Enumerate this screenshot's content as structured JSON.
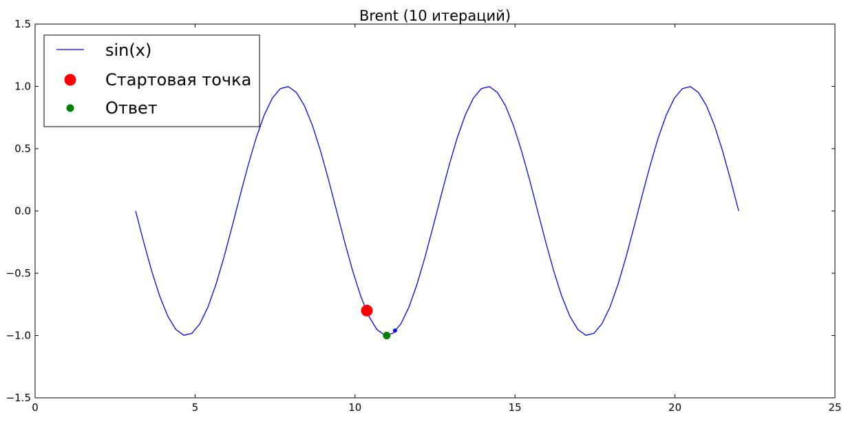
{
  "chart_data": {
    "type": "line",
    "title": "Brent (10 итераций)",
    "xlabel": "",
    "ylabel": "",
    "xlim": [
      0,
      25
    ],
    "ylim": [
      -1.5,
      1.5
    ],
    "xticks": [
      0,
      5,
      10,
      15,
      20,
      25
    ],
    "yticks": [
      -1.5,
      -1.0,
      -0.5,
      0.0,
      0.5,
      1.0,
      1.5
    ],
    "xtick_labels": [
      "0",
      "5",
      "10",
      "15",
      "20",
      "25"
    ],
    "ytick_labels": [
      "−1.5",
      "−1.0",
      "−0.5",
      "0.0",
      "0.5",
      "1.0",
      "1.5"
    ],
    "grid": false,
    "legend_position": "top-left",
    "series": [
      {
        "name": "sin(x)",
        "kind": "line",
        "color": "#0000ff",
        "function": "sin",
        "x_start": 3.1416,
        "x_end": 21.9911,
        "num_points": 76
      },
      {
        "name": "Стартовая точка",
        "kind": "marker",
        "color": "#ff0000",
        "marker_size": "large",
        "points": [
          {
            "x": 10.37,
            "y": -0.8
          }
        ]
      },
      {
        "name": "Ответ",
        "kind": "marker",
        "color": "#008000",
        "marker_size": "medium",
        "points": [
          {
            "x": 10.99,
            "y": -1.0
          }
        ]
      },
      {
        "name": "",
        "kind": "marker",
        "color": "#0000ff",
        "marker_size": "small",
        "in_legend": false,
        "points": [
          {
            "x": 11.25,
            "y": -0.96
          }
        ]
      }
    ]
  }
}
